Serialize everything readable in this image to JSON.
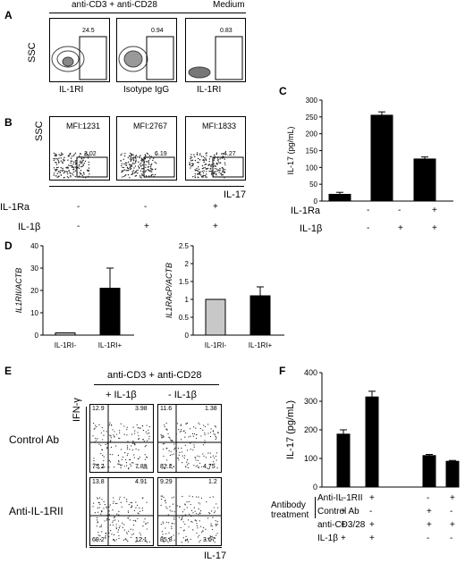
{
  "panels": {
    "A": {
      "letter": "A",
      "header_stim": "anti-CD3 + anti-CD28",
      "header_medium": "Medium",
      "ylabel": "SSC",
      "plots": [
        {
          "xlabel": "IL-1RI",
          "gate_value": "24.5"
        },
        {
          "xlabel": "Isotype IgG",
          "gate_value": "0.94"
        },
        {
          "xlabel": "IL-1RI",
          "gate_value": "0.83"
        }
      ]
    },
    "B": {
      "letter": "B",
      "ylabel": "SSC",
      "xlabel": "IL-17",
      "plots": [
        {
          "mfi": "MFI:1231",
          "gate_value": "3.02"
        },
        {
          "mfi": "MFI:2767",
          "gate_value": "6.19"
        },
        {
          "mfi": "MFI:1833",
          "gate_value": "4.27"
        }
      ],
      "row1_label": "IL-1Ra",
      "row2_label": "IL-1β",
      "row1_signs": [
        "-",
        "-",
        "+"
      ],
      "row2_signs": [
        "-",
        "+",
        "+"
      ]
    },
    "C": {
      "letter": "C",
      "row1_label": "IL-1Ra",
      "row2_label": "IL-1β",
      "row1_signs": [
        "-",
        "-",
        "+"
      ],
      "row2_signs": [
        "-",
        "+",
        "+"
      ]
    },
    "D": {
      "letter": "D",
      "left_categories": [
        "IL-1RI-",
        "IL-1RI+"
      ],
      "right_categories": [
        "IL-1RI-",
        "IL-1RI+"
      ]
    },
    "E": {
      "letter": "E",
      "header": "anti-CD3 + anti-CD28",
      "col1": "+ IL-1β",
      "col2": "- IL-1β",
      "ylabel": "IFN-γ",
      "xlabel": "IL-17",
      "row1": "Control Ab",
      "row2": "Anti-IL-1RII",
      "quads": [
        {
          "ul": "12.9",
          "ur": "3.98",
          "ll": "75.2",
          "lr": "7.89"
        },
        {
          "ul": "11.6",
          "ur": "1.38",
          "ll": "82.2",
          "lr": "4.75"
        },
        {
          "ul": "13.8",
          "ur": "4.91",
          "ll": "69.2",
          "lr": "12.1"
        },
        {
          "ul": "9.29",
          "ur": "1.2",
          "ll": "85.8",
          "lr": "3.67"
        }
      ]
    },
    "F": {
      "letter": "F",
      "antibody_label": "Antibody treatment",
      "rows": [
        {
          "label": "Anti-IL-1RII",
          "signs": [
            "-",
            "+",
            "",
            "-",
            "+"
          ]
        },
        {
          "label": "Control Ab",
          "signs": [
            "+",
            "-",
            "",
            "+",
            "-"
          ]
        },
        {
          "label": "anti-CD3/28",
          "signs": [
            "+",
            "+",
            "",
            "+",
            "+"
          ]
        },
        {
          "label": "IL-1β",
          "signs": [
            "+",
            "+",
            "",
            "-",
            "-"
          ]
        }
      ]
    }
  },
  "chart_data": [
    {
      "id": "C",
      "type": "bar",
      "ylabel": "IL-17 (pg/mL)",
      "ylim": [
        0,
        300
      ],
      "yticks": [
        0,
        50,
        100,
        150,
        200,
        250,
        300
      ],
      "values": [
        20,
        255,
        125
      ],
      "errors": [
        6,
        10,
        6
      ]
    },
    {
      "id": "D-left",
      "type": "bar",
      "ylabel": "IL1RII/ACTB",
      "ylim": [
        0,
        40
      ],
      "yticks": [
        0,
        10,
        20,
        30,
        40
      ],
      "categories": [
        "IL-1RI-",
        "IL-1RI+"
      ],
      "values": [
        1,
        21
      ],
      "errors": [
        0,
        9
      ],
      "colors": [
        "#c8c8c8",
        "#000000"
      ]
    },
    {
      "id": "D-right",
      "type": "bar",
      "ylabel": "IL1RAcP/ACTB",
      "ylim": [
        0,
        2.5
      ],
      "yticks": [
        0,
        0.5,
        1,
        1.5,
        2,
        2.5
      ],
      "categories": [
        "IL-1RI-",
        "IL-1RI+"
      ],
      "values": [
        1,
        1.1
      ],
      "errors": [
        0,
        0.25
      ],
      "colors": [
        "#c8c8c8",
        "#000000"
      ]
    },
    {
      "id": "F",
      "type": "bar",
      "ylabel": "IL-17 (pg/mL)",
      "ylim": [
        0,
        400
      ],
      "yticks": [
        0,
        100,
        200,
        300,
        400
      ],
      "values": [
        185,
        315,
        null,
        110,
        90
      ],
      "errors": [
        15,
        20,
        0,
        4,
        3
      ]
    }
  ]
}
